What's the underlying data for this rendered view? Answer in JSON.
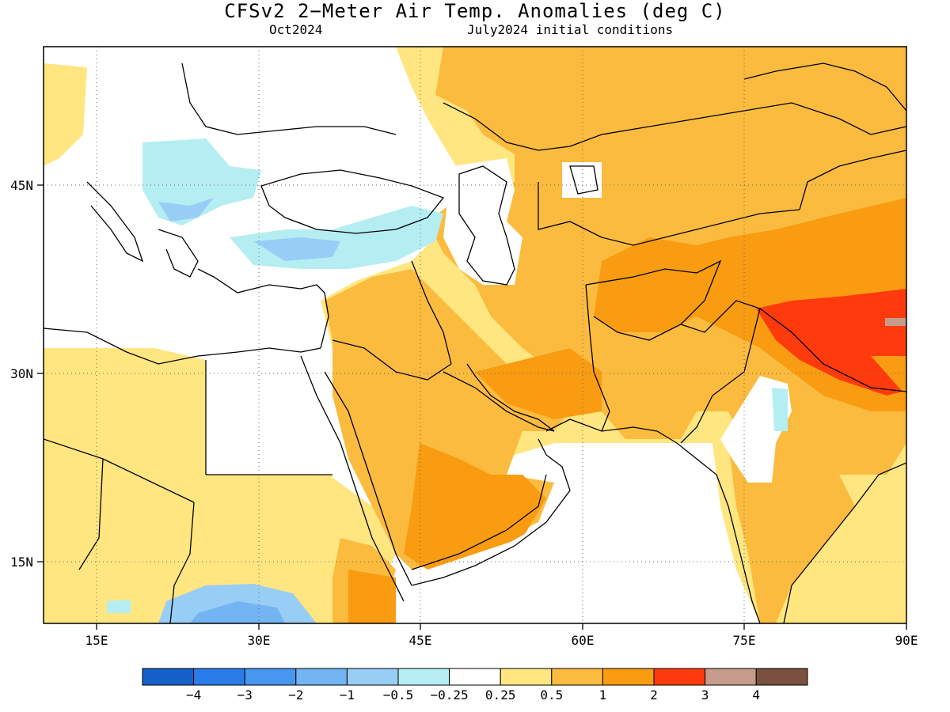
{
  "title": "CFSv2 2−Meter Air Temp. Anomalies (deg C)",
  "subtitle_left": "Oct2024",
  "subtitle_right": "July2024 initial conditions",
  "map": {
    "lon_range": [
      10,
      90
    ],
    "lat_range": [
      10,
      55
    ],
    "x_ticks": [
      "15E",
      "30E",
      "45E",
      "60E",
      "75E",
      "90E"
    ],
    "y_ticks": [
      "45N",
      "30N",
      "15N"
    ],
    "gridlines": "dotted",
    "region": "Middle East, North Africa, Central and South Asia"
  },
  "legend": {
    "colors": [
      "#1560c9",
      "#2a7ce8",
      "#4796ef",
      "#73b4f2",
      "#98cdf6",
      "#b5eef2",
      "#ffffff",
      "#ffe680",
      "#fbbb3e",
      "#f99c12",
      "#ff3a0c",
      "#c59c8c",
      "#7a5040"
    ],
    "labels": [
      "−4",
      "−3",
      "−2",
      "−1",
      "−0.5",
      "−0.25",
      "0.25",
      "0.5",
      "1",
      "2",
      "3",
      "4"
    ]
  },
  "anomaly_regions": [
    {
      "name": "central-asia-warm",
      "category": "1 to 2"
    },
    {
      "name": "arabian-peninsula-warm",
      "category": "1 to 2"
    },
    {
      "name": "tibet-hot",
      "category": "2 to 3"
    },
    {
      "name": "turkey-cool",
      "category": "-0.5 to -1"
    },
    {
      "name": "balkans-cool",
      "category": "-0.25 to -0.5"
    },
    {
      "name": "east-africa-cool",
      "category": "-1 to -2"
    }
  ]
}
